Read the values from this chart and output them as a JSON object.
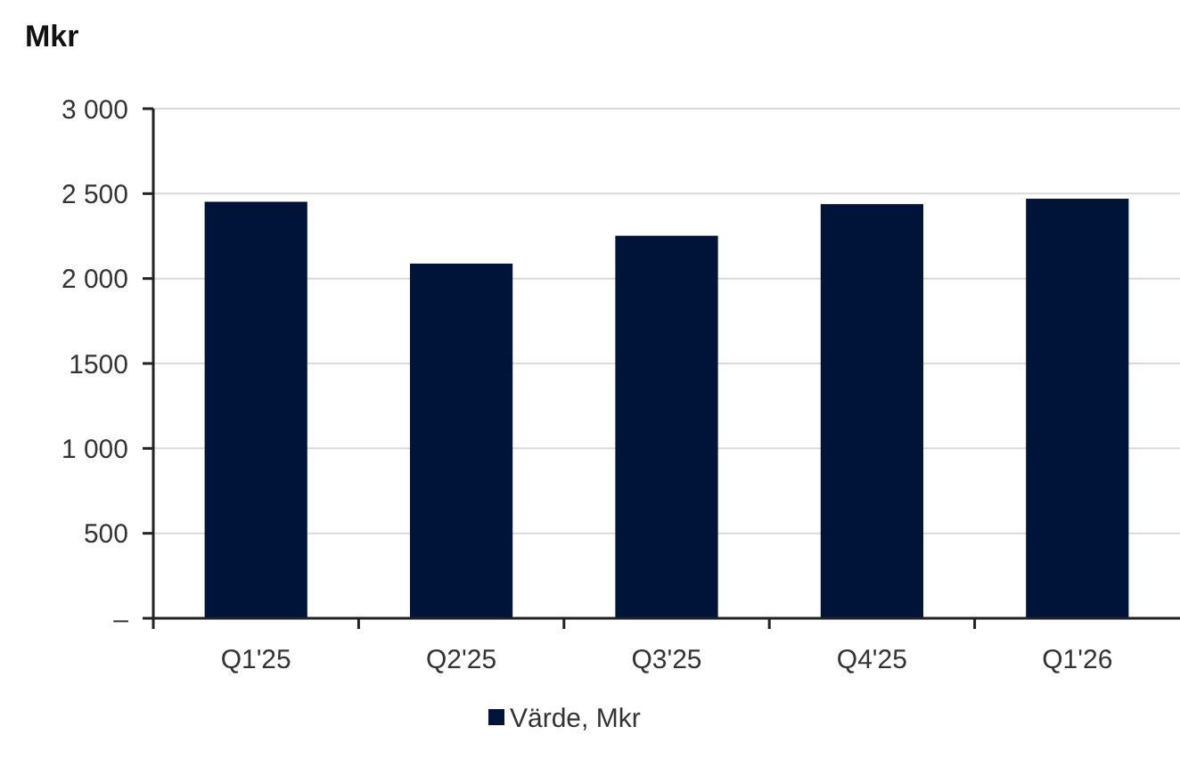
{
  "chart_data": {
    "type": "bar",
    "ylabel": "Mkr",
    "categories": [
      "Q1'25",
      "Q2'25",
      "Q3'25",
      "Q4'25",
      "Q1'26"
    ],
    "series": [
      {
        "name": "Värde, Mkr",
        "color": "#00143a",
        "values": [
          2452,
          2088,
          2252,
          2438,
          2470
        ]
      }
    ],
    "ylim": [
      0,
      3000
    ],
    "yticks": [
      {
        "value": 0,
        "label": "–"
      },
      {
        "value": 500,
        "label": "500"
      },
      {
        "value": 1000,
        "label": "1 000"
      },
      {
        "value": 1500,
        "label": "1500"
      },
      {
        "value": 2000,
        "label": "2 000"
      },
      {
        "value": 2500,
        "label": "2 500"
      },
      {
        "value": 3000,
        "label": "3 000"
      }
    ],
    "grid": "y",
    "legend": "bottom"
  }
}
